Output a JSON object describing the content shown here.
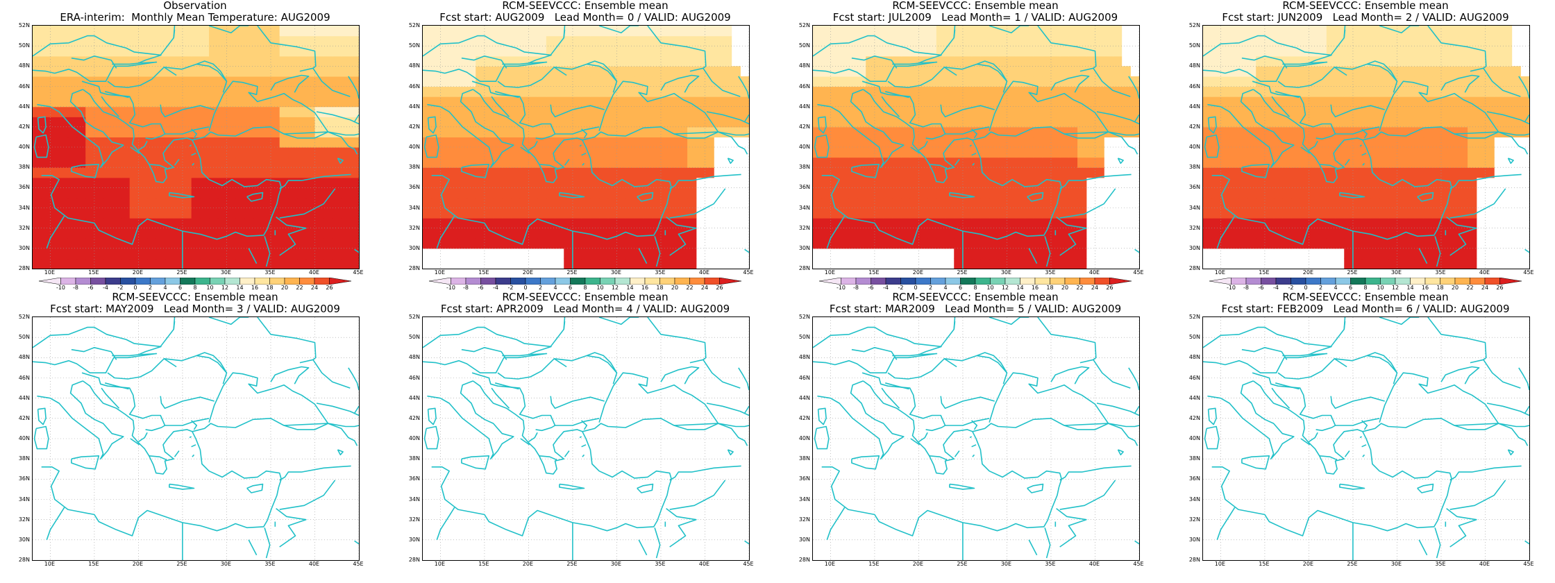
{
  "map_extent": {
    "lon_min": 8,
    "lon_max": 45,
    "lat_min": 28,
    "lat_max": 52
  },
  "lat_ticks": [
    "28N",
    "30N",
    "32N",
    "34N",
    "36N",
    "38N",
    "40N",
    "42N",
    "44N",
    "46N",
    "48N",
    "50N",
    "52N"
  ],
  "lon_ticks": [
    "10E",
    "15E",
    "20E",
    "25E",
    "30E",
    "35E",
    "40E",
    "45E"
  ],
  "colorbar": {
    "labels": [
      "-10",
      "-8",
      "-6",
      "-4",
      "-2",
      "0",
      "2",
      "4",
      "6",
      "8",
      "10",
      "12",
      "14",
      "16",
      "18",
      "20",
      "22",
      "24",
      "26"
    ],
    "colors": [
      "#f5e6f5",
      "#dcb4e6",
      "#b48cd2",
      "#7850a0",
      "#3c3c8c",
      "#2850a0",
      "#3c78c8",
      "#64a0dc",
      "#8cc8e6",
      "#14785a",
      "#3cb48c",
      "#78d2b4",
      "#b4e6d2",
      "#fff0c8",
      "#ffe6a0",
      "#ffd278",
      "#ffb450",
      "#ff8c3c",
      "#f05028",
      "#dc1e1e"
    ],
    "unit_direction": "both-ends-arrows"
  },
  "panels": [
    {
      "title1": "Observation",
      "title2": "ERA-interim:  Monthly Mean Temperature: AUG2009",
      "filled": true,
      "variant": "obs"
    },
    {
      "title1": "RCM-SEEVCCC: Ensemble mean",
      "title2": "Fcst start: AUG2009   Lead Month= 0 / VALID: AUG2009",
      "filled": true,
      "variant": "m0"
    },
    {
      "title1": "RCM-SEEVCCC: Ensemble mean",
      "title2": "Fcst start: JUL2009   Lead Month= 1 / VALID: AUG2009",
      "filled": true,
      "variant": "m1"
    },
    {
      "title1": "RCM-SEEVCCC: Ensemble mean",
      "title2": "Fcst start: JUN2009   Lead Month= 2 / VALID: AUG2009",
      "filled": true,
      "variant": "m2"
    },
    {
      "title1": "RCM-SEEVCCC: Ensemble mean",
      "title2": "Fcst start: MAY2009   Lead Month= 3 / VALID: AUG2009",
      "filled": false,
      "variant": "empty"
    },
    {
      "title1": "RCM-SEEVCCC: Ensemble mean",
      "title2": "Fcst start: APR2009   Lead Month= 4 / VALID: AUG2009",
      "filled": false,
      "variant": "empty"
    },
    {
      "title1": "RCM-SEEVCCC: Ensemble mean",
      "title2": "Fcst start: MAR2009   Lead Month= 5 / VALID: AUG2009",
      "filled": false,
      "variant": "empty"
    },
    {
      "title1": "RCM-SEEVCCC: Ensemble mean",
      "title2": "Fcst start: FEB2009   Lead Month= 6 / VALID: AUG2009",
      "filled": false,
      "variant": "empty"
    }
  ],
  "coastline_color": "#20c0c8",
  "gridline_color": "#999999"
}
